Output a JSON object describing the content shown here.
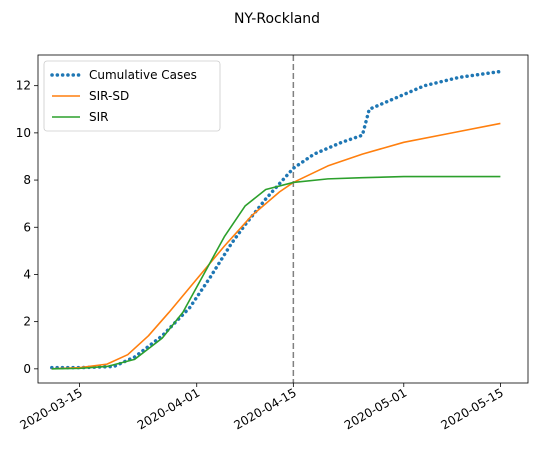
{
  "chart_data": {
    "type": "line",
    "title": "NY-Rockland",
    "xlabel": "",
    "ylabel": "",
    "xlim": [
      "2020-03-09",
      "2020-05-19"
    ],
    "ylim": [
      -0.6,
      13.3
    ],
    "x_ticks": [
      "2020-03-15",
      "2020-04-01",
      "2020-04-15",
      "2020-05-01",
      "2020-05-15"
    ],
    "y_ticks": [
      0,
      2,
      4,
      6,
      8,
      10,
      12
    ],
    "grid": false,
    "legend_position": "upper-left",
    "vline": {
      "x": "2020-04-15",
      "color": "#808080",
      "style": "dashed"
    },
    "series": [
      {
        "name": "Cumulative Cases",
        "color": "#1f77b4",
        "style": "dotted",
        "points": [
          [
            "2020-03-11",
            0.05
          ],
          [
            "2020-03-15",
            0.05
          ],
          [
            "2020-03-20",
            0.1
          ],
          [
            "2020-03-23",
            0.5
          ],
          [
            "2020-03-27",
            1.4
          ],
          [
            "2020-03-31",
            2.6
          ],
          [
            "2020-04-03",
            3.9
          ],
          [
            "2020-04-06",
            5.3
          ],
          [
            "2020-04-08",
            6.1
          ],
          [
            "2020-04-11",
            7.2
          ],
          [
            "2020-04-15",
            8.5
          ],
          [
            "2020-04-18",
            9.1
          ],
          [
            "2020-04-22",
            9.6
          ],
          [
            "2020-04-25",
            9.9
          ],
          [
            "2020-04-26",
            11.0
          ],
          [
            "2020-04-30",
            11.5
          ],
          [
            "2020-05-04",
            12.0
          ],
          [
            "2020-05-09",
            12.35
          ],
          [
            "2020-05-15",
            12.6
          ]
        ]
      },
      {
        "name": "SIR-SD",
        "color": "#ff7f0e",
        "style": "solid",
        "points": [
          [
            "2020-03-11",
            0.0
          ],
          [
            "2020-03-15",
            0.05
          ],
          [
            "2020-03-19",
            0.2
          ],
          [
            "2020-03-22",
            0.6
          ],
          [
            "2020-03-25",
            1.4
          ],
          [
            "2020-03-28",
            2.4
          ],
          [
            "2020-04-01",
            3.8
          ],
          [
            "2020-04-05",
            5.2
          ],
          [
            "2020-04-09",
            6.5
          ],
          [
            "2020-04-13",
            7.5
          ],
          [
            "2020-04-15",
            7.9
          ],
          [
            "2020-04-20",
            8.6
          ],
          [
            "2020-04-25",
            9.1
          ],
          [
            "2020-05-01",
            9.6
          ],
          [
            "2020-05-08",
            10.0
          ],
          [
            "2020-05-15",
            10.4
          ]
        ]
      },
      {
        "name": "SIR",
        "color": "#2ca02c",
        "style": "solid",
        "points": [
          [
            "2020-03-11",
            0.0
          ],
          [
            "2020-03-15",
            0.02
          ],
          [
            "2020-03-19",
            0.1
          ],
          [
            "2020-03-23",
            0.4
          ],
          [
            "2020-03-27",
            1.3
          ],
          [
            "2020-03-30",
            2.4
          ],
          [
            "2020-04-02",
            4.0
          ],
          [
            "2020-04-05",
            5.6
          ],
          [
            "2020-04-08",
            6.9
          ],
          [
            "2020-04-11",
            7.6
          ],
          [
            "2020-04-15",
            7.9
          ],
          [
            "2020-04-20",
            8.05
          ],
          [
            "2020-04-25",
            8.1
          ],
          [
            "2020-05-01",
            8.15
          ],
          [
            "2020-05-08",
            8.15
          ],
          [
            "2020-05-15",
            8.15
          ]
        ]
      }
    ]
  }
}
